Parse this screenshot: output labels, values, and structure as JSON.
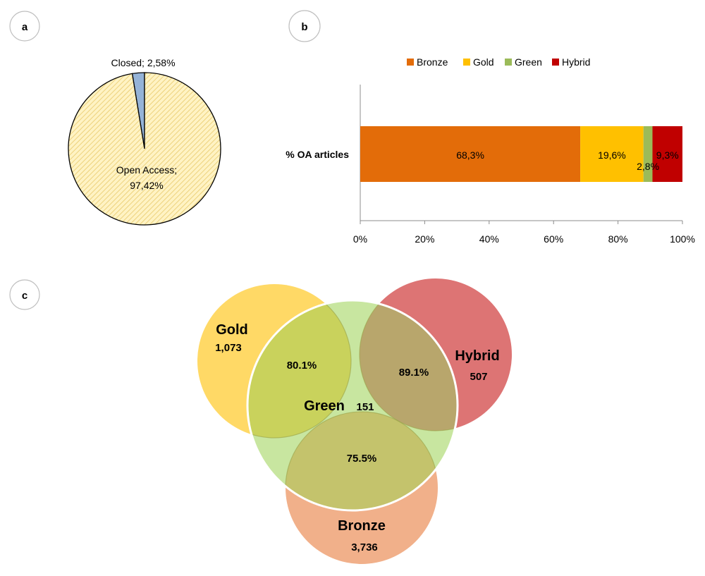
{
  "panels": {
    "a": {
      "label": "a"
    },
    "b": {
      "label": "b"
    },
    "c": {
      "label": "c"
    }
  },
  "chart_data": [
    {
      "panel": "a",
      "type": "pie",
      "slices": [
        {
          "name": "Closed",
          "value": 2.58,
          "label": "Closed; 2,58%",
          "color": "#95b3d7",
          "pattern": "solid"
        },
        {
          "name": "Open Access",
          "value": 97.42,
          "label_lines": [
            "Open Access;",
            "97,42%"
          ],
          "color": "#fff2b3",
          "pattern": "hatched"
        }
      ]
    },
    {
      "panel": "b",
      "type": "bar",
      "orientation": "horizontal",
      "stacking": "percent",
      "categories": [
        "% OA articles"
      ],
      "series": [
        {
          "name": "Bronze",
          "values": [
            68.3
          ],
          "label": "68,3%",
          "color": "#e36c09"
        },
        {
          "name": "Gold",
          "values": [
            19.6
          ],
          "label": "19,6%",
          "color": "#ffc000"
        },
        {
          "name": "Green",
          "values": [
            2.8
          ],
          "label": "2,8%",
          "color": "#9bbb59"
        },
        {
          "name": "Hybrid",
          "values": [
            9.3
          ],
          "label": "9,3%",
          "color": "#c00000"
        }
      ],
      "x_ticks": [
        "0%",
        "20%",
        "40%",
        "60%",
        "80%",
        "100%"
      ],
      "xlim": [
        0,
        100
      ],
      "legend_position": "top"
    },
    {
      "panel": "c",
      "type": "venn",
      "sets": [
        {
          "name": "Gold",
          "count": "1,073",
          "color": "#ffd966"
        },
        {
          "name": "Hybrid",
          "count": "507",
          "color": "#dd7474"
        },
        {
          "name": "Green",
          "count": "151",
          "color": "#c8e6a0"
        },
        {
          "name": "Bronze",
          "count": "3,736",
          "color": "#f1b08a"
        }
      ],
      "overlaps": [
        {
          "sets": [
            "Gold",
            "Green"
          ],
          "label": "80.1%",
          "color": "#c9d25c"
        },
        {
          "sets": [
            "Hybrid",
            "Green"
          ],
          "label": "89.1%",
          "color": "#b8a66c"
        },
        {
          "sets": [
            "Bronze",
            "Green"
          ],
          "label": "75.5%",
          "color": "#c4c36c"
        }
      ]
    }
  ]
}
